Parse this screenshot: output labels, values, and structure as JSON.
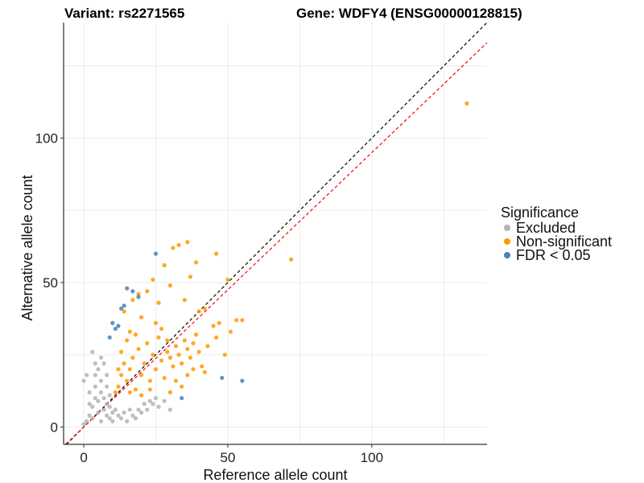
{
  "chart_data": {
    "type": "scatter",
    "title_left": "Variant: rs2271565",
    "title_right": "Gene: WDFY4 (ENSG00000128815)",
    "xlabel": "Reference allele count",
    "ylabel": "Alternative allele count",
    "xlim": [
      -7,
      140
    ],
    "ylim": [
      -6,
      140
    ],
    "x_ticks": [
      0,
      50,
      100
    ],
    "y_ticks": [
      0,
      50,
      100
    ],
    "grid": true,
    "legend": {
      "title": "Significance",
      "position": "right",
      "entries": [
        {
          "label": "Excluded",
          "color": "#b3b3b3"
        },
        {
          "label": "Non-significant",
          "color": "#ff9900"
        },
        {
          "label": "FDR < 0.05",
          "color": "#4682b4"
        }
      ]
    },
    "reference_lines": [
      {
        "name": "identity",
        "slope": 1.0,
        "intercept": 0,
        "color": "#000000",
        "style": "dashed"
      },
      {
        "name": "fit",
        "slope": 0.95,
        "intercept": 0,
        "color": "#ff0000",
        "style": "dashed"
      }
    ],
    "series": [
      {
        "name": "Excluded",
        "color": "#b3b3b3",
        "description": "dense cluster with reference count 0-30 and alternative count 0-25",
        "points": [
          [
            0,
            16
          ],
          [
            1,
            18
          ],
          [
            2,
            8
          ],
          [
            2,
            12
          ],
          [
            3,
            3
          ],
          [
            3,
            7
          ],
          [
            4,
            10
          ],
          [
            4,
            14
          ],
          [
            4,
            18
          ],
          [
            5,
            5
          ],
          [
            5,
            20
          ],
          [
            5,
            9
          ],
          [
            6,
            2
          ],
          [
            6,
            12
          ],
          [
            6,
            16
          ],
          [
            7,
            6
          ],
          [
            7,
            22
          ],
          [
            7,
            10
          ],
          [
            8,
            4
          ],
          [
            8,
            8
          ],
          [
            8,
            14
          ],
          [
            8,
            18
          ],
          [
            9,
            3
          ],
          [
            9,
            11
          ],
          [
            9,
            7
          ],
          [
            10,
            2
          ],
          [
            10,
            5
          ],
          [
            11,
            6
          ],
          [
            12,
            4
          ],
          [
            13,
            3
          ],
          [
            14,
            5
          ],
          [
            15,
            2
          ],
          [
            16,
            6
          ],
          [
            17,
            4
          ],
          [
            18,
            3
          ],
          [
            19,
            6
          ],
          [
            20,
            5
          ],
          [
            21,
            8
          ],
          [
            22,
            6
          ],
          [
            23,
            9
          ],
          [
            24,
            8
          ],
          [
            25,
            10
          ],
          [
            26,
            7
          ],
          [
            28,
            9
          ],
          [
            30,
            6
          ],
          [
            4,
            22
          ],
          [
            6,
            24
          ],
          [
            3,
            26
          ],
          [
            2,
            4
          ],
          [
            1,
            2
          ],
          [
            0,
            1
          ]
        ]
      },
      {
        "name": "Non-significant",
        "color": "#ff9900",
        "description": "dense cluster with reference count 10-45 and alternative count 10-45 plus outliers",
        "points": [
          [
            12,
            14
          ],
          [
            13,
            18
          ],
          [
            14,
            22
          ],
          [
            15,
            16
          ],
          [
            16,
            20
          ],
          [
            17,
            24
          ],
          [
            18,
            13
          ],
          [
            19,
            27
          ],
          [
            20,
            18
          ],
          [
            21,
            22
          ],
          [
            22,
            29
          ],
          [
            23,
            16
          ],
          [
            24,
            25
          ],
          [
            25,
            20
          ],
          [
            26,
            31
          ],
          [
            27,
            23
          ],
          [
            28,
            17
          ],
          [
            29,
            26
          ],
          [
            30,
            24
          ],
          [
            31,
            21
          ],
          [
            32,
            28
          ],
          [
            33,
            25
          ],
          [
            34,
            22
          ],
          [
            35,
            30
          ],
          [
            36,
            27
          ],
          [
            37,
            24
          ],
          [
            38,
            29
          ],
          [
            39,
            32
          ],
          [
            40,
            26
          ],
          [
            41,
            21
          ],
          [
            42,
            19
          ],
          [
            43,
            28
          ],
          [
            45,
            35
          ],
          [
            46,
            31
          ],
          [
            47,
            36
          ],
          [
            49,
            25
          ],
          [
            51,
            33
          ],
          [
            53,
            37
          ],
          [
            55,
            37
          ],
          [
            14,
            40
          ],
          [
            16,
            33
          ],
          [
            17,
            44
          ],
          [
            19,
            46
          ],
          [
            20,
            38
          ],
          [
            22,
            47
          ],
          [
            24,
            51
          ],
          [
            26,
            43
          ],
          [
            28,
            56
          ],
          [
            30,
            49
          ],
          [
            31,
            62
          ],
          [
            33,
            63
          ],
          [
            35,
            44
          ],
          [
            36,
            64
          ],
          [
            37,
            52
          ],
          [
            39,
            57
          ],
          [
            40,
            40
          ],
          [
            42,
            41
          ],
          [
            46,
            60
          ],
          [
            50,
            51
          ],
          [
            72,
            58
          ],
          [
            133,
            112
          ],
          [
            11,
            12
          ],
          [
            12,
            20
          ],
          [
            13,
            26
          ],
          [
            15,
            30
          ],
          [
            16,
            12
          ],
          [
            18,
            32
          ],
          [
            20,
            11
          ],
          [
            23,
            13
          ],
          [
            25,
            36
          ],
          [
            27,
            34
          ],
          [
            29,
            30
          ],
          [
            30,
            12
          ],
          [
            32,
            16
          ],
          [
            34,
            14
          ],
          [
            36,
            18
          ],
          [
            38,
            20
          ]
        ]
      },
      {
        "name": "FDR < 0.05",
        "color": "#4682b4",
        "description": "significant outliers",
        "points": [
          [
            9,
            31
          ],
          [
            10,
            36
          ],
          [
            11,
            34
          ],
          [
            12,
            35
          ],
          [
            13,
            41
          ],
          [
            14,
            42
          ],
          [
            15,
            48
          ],
          [
            17,
            47
          ],
          [
            19,
            45
          ],
          [
            25,
            60
          ],
          [
            34,
            10
          ],
          [
            48,
            17
          ],
          [
            55,
            16
          ]
        ]
      }
    ]
  }
}
